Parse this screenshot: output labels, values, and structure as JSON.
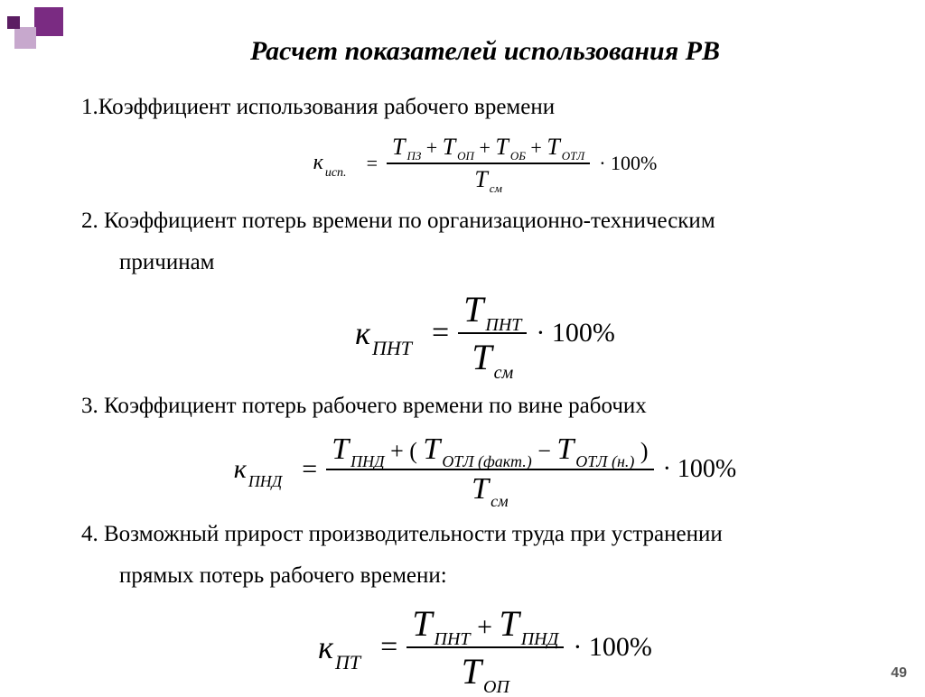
{
  "title": "Расчет показателей использования РВ",
  "items": [
    {
      "label": "1.Коэффициент использования рабочего времени",
      "indent_cont": null,
      "formula": {
        "size": "sm",
        "lhs_sub": "исп.",
        "num_terms": [
          {
            "sub": "ПЗ"
          },
          {
            "op": "+",
            "sub": "ОП"
          },
          {
            "op": "+",
            "sub": "ОБ"
          },
          {
            "op": "+",
            "sub": "ОТЛ"
          }
        ],
        "den_terms": [
          {
            "sub": "см"
          }
        ],
        "tail": "· 100%"
      }
    },
    {
      "label": "2. Коэффициент потерь времени по организационно-техническим",
      "indent_cont": "причинам",
      "formula": {
        "size": "lg",
        "lhs_sub": "ПНТ",
        "num_terms": [
          {
            "sub": "ПНТ"
          }
        ],
        "den_terms": [
          {
            "sub": "см"
          }
        ],
        "tail": "· 100%"
      }
    },
    {
      "label": "3. Коэффициент потерь рабочего времени по вине рабочих",
      "indent_cont": null,
      "formula": {
        "size": "md",
        "lhs_sub": "ПНД",
        "num_raw": [
          {
            "t": "T",
            "sub": "ПНД"
          },
          {
            "t": "txt",
            "v": " + ( "
          },
          {
            "t": "T",
            "sub": "ОТЛ (факт.)"
          },
          {
            "t": "txt",
            "v": " − "
          },
          {
            "t": "T",
            "sub": "ОТЛ (н.)"
          },
          {
            "t": "txt",
            "v": " )"
          }
        ],
        "den_terms": [
          {
            "sub": "см"
          }
        ],
        "tail": "· 100%"
      }
    },
    {
      "label": "4. Возможный прирост производительности труда при устранении",
      "indent_cont": "прямых потерь рабочего времени:",
      "formula": {
        "size": "lg",
        "lhs_sub": "ПТ",
        "num_terms": [
          {
            "sub": "ПНТ"
          },
          {
            "op": "+",
            "sub": "ПНД"
          }
        ],
        "den_terms": [
          {
            "sub": "ОП"
          }
        ],
        "tail": "· 100%"
      }
    }
  ],
  "page_number": "49",
  "decor_colors": {
    "sq1": "#7a2b82",
    "sq2": "#c7a8cd",
    "sq3": "#5b1d62"
  }
}
